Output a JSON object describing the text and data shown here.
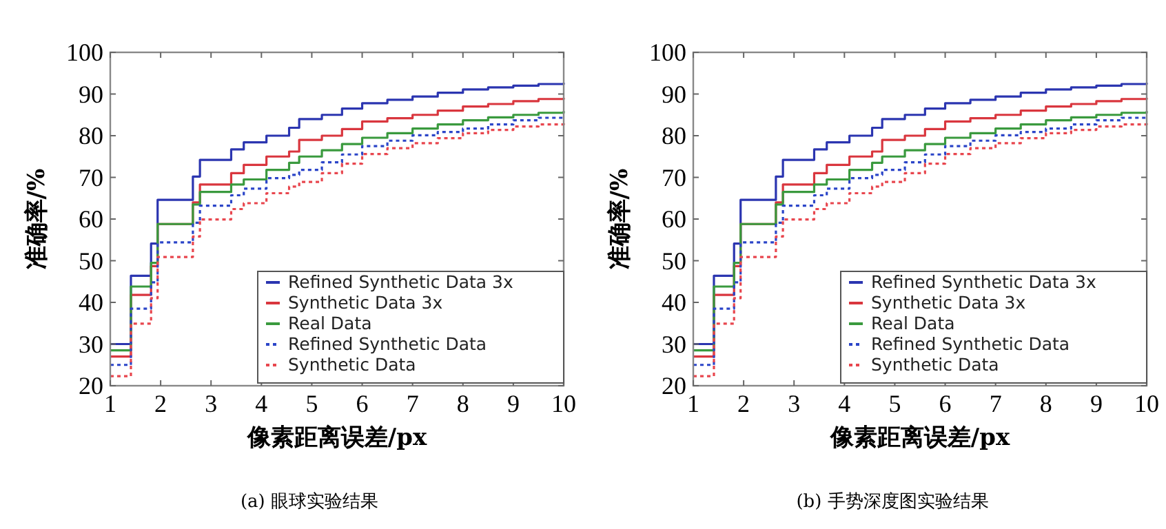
{
  "chart_data": [
    {
      "type": "step",
      "title": "(a) 眼球实验结果",
      "xlabel": "像素距离误差/px",
      "ylabel": "准确率/%",
      "x": [
        1,
        1.41,
        1.81,
        1.94,
        2.64,
        2.78,
        3.4,
        3.65,
        4.1,
        4.55,
        4.75,
        5.2,
        5.6,
        6,
        6.5,
        7,
        7.5,
        8,
        8.5,
        9,
        9.5,
        10
      ],
      "xlim": [
        1,
        10
      ],
      "xticks": [
        1,
        2,
        3,
        4,
        5,
        6,
        7,
        8,
        9,
        10
      ],
      "ylim": [
        20,
        100
      ],
      "yticks": [
        20,
        30,
        40,
        50,
        60,
        70,
        80,
        90,
        100
      ],
      "grid": false,
      "legend": "bottom right",
      "series": [
        {
          "name": "Refined Synthetic Data 3x",
          "color": "#2b35b0",
          "line_style": "solid",
          "values": [
            30,
            46.4,
            54.1,
            64.6,
            70.2,
            74.2,
            76.7,
            78.4,
            80,
            81.9,
            84,
            85,
            86.5,
            87.8,
            88.6,
            89.4,
            90.3,
            91.1,
            91.6,
            92,
            92.4,
            92.7
          ]
        },
        {
          "name": "Synthetic Data 3x",
          "color": "#d9363e",
          "line_style": "solid",
          "values": [
            27,
            41.8,
            48.7,
            58.8,
            64,
            68.3,
            71,
            73,
            75,
            76.2,
            79,
            80,
            81.6,
            83.4,
            84.2,
            85,
            86,
            87,
            87.6,
            88.3,
            88.8,
            89.1
          ]
        },
        {
          "name": "Real Data",
          "color": "#3a9a3e",
          "line_style": "solid",
          "values": [
            28.5,
            43.8,
            49.5,
            58.8,
            63.5,
            66.5,
            68.3,
            69.5,
            71.8,
            73.5,
            75,
            76.5,
            78,
            79.5,
            80.6,
            81.7,
            82.7,
            83.7,
            84.4,
            85,
            85.5,
            85.9
          ]
        },
        {
          "name": "Refined Synthetic Data",
          "color": "#2b45c8",
          "line_style": "dotted",
          "values": [
            25,
            38.5,
            44.8,
            54.4,
            59.1,
            63.2,
            65.7,
            67.3,
            69.8,
            70.6,
            71.8,
            73.6,
            75.5,
            77.5,
            78.8,
            80.1,
            80.9,
            81.7,
            82.7,
            83.7,
            84.3,
            84.8
          ]
        },
        {
          "name": "Synthetic Data",
          "color": "#e8464e",
          "line_style": "dotted",
          "values": [
            22.3,
            34.9,
            41,
            50.9,
            55.8,
            59.9,
            62.4,
            63.8,
            66.2,
            67.8,
            68.9,
            71,
            73.3,
            75.6,
            77,
            78.2,
            79.4,
            80.6,
            81.4,
            82.2,
            82.7,
            83.2
          ]
        }
      ]
    },
    {
      "type": "step",
      "title": "(b) 手势深度图实验结果",
      "xlabel": "像素距离误差/px",
      "ylabel": "准确率/%",
      "x": [
        1,
        1.41,
        1.81,
        1.94,
        2.64,
        2.78,
        3.4,
        3.65,
        4.1,
        4.55,
        4.75,
        5.2,
        5.6,
        6,
        6.5,
        7,
        7.5,
        8,
        8.5,
        9,
        9.5,
        10
      ],
      "xlim": [
        1,
        10
      ],
      "xticks": [
        1,
        2,
        3,
        4,
        5,
        6,
        7,
        8,
        9,
        10
      ],
      "ylim": [
        20,
        100
      ],
      "yticks": [
        20,
        30,
        40,
        50,
        60,
        70,
        80,
        90,
        100
      ],
      "grid": false,
      "legend": "bottom right",
      "series": [
        {
          "name": "Refined Synthetic Data 3x",
          "color": "#2b35b0",
          "line_style": "solid",
          "values": [
            30,
            46.4,
            54.1,
            64.6,
            70.2,
            74.2,
            76.7,
            78.4,
            80,
            81.9,
            84,
            85,
            86.5,
            87.8,
            88.6,
            89.4,
            90.3,
            91.1,
            91.6,
            92,
            92.4,
            92.7
          ]
        },
        {
          "name": "Synthetic Data 3x",
          "color": "#d9363e",
          "line_style": "solid",
          "values": [
            27,
            41.8,
            48.7,
            58.8,
            64,
            68.3,
            71,
            73,
            75,
            76.2,
            79,
            80,
            81.6,
            83.4,
            84.2,
            85,
            86,
            87,
            87.6,
            88.3,
            88.8,
            89.1
          ]
        },
        {
          "name": "Real Data",
          "color": "#3a9a3e",
          "line_style": "solid",
          "values": [
            28.5,
            43.8,
            49.5,
            58.8,
            63.5,
            66.5,
            68.3,
            69.5,
            71.8,
            73.5,
            75,
            76.5,
            78,
            79.5,
            80.6,
            81.7,
            82.7,
            83.7,
            84.4,
            85,
            85.5,
            85.9
          ]
        },
        {
          "name": "Refined Synthetic Data",
          "color": "#2b45c8",
          "line_style": "dotted",
          "values": [
            25,
            38.5,
            44.8,
            54.4,
            59.1,
            63.2,
            65.7,
            67.3,
            69.8,
            70.6,
            71.8,
            73.6,
            75.5,
            77.5,
            78.8,
            80.1,
            80.9,
            81.7,
            82.7,
            83.7,
            84.3,
            84.8
          ]
        },
        {
          "name": "Synthetic Data",
          "color": "#e8464e",
          "line_style": "dotted",
          "values": [
            22.3,
            34.9,
            41,
            50.9,
            55.8,
            59.9,
            62.4,
            63.8,
            66.2,
            67.8,
            68.9,
            71,
            73.3,
            75.6,
            77,
            78.2,
            79.4,
            80.6,
            81.4,
            82.2,
            82.7,
            83.2
          ]
        }
      ]
    }
  ]
}
